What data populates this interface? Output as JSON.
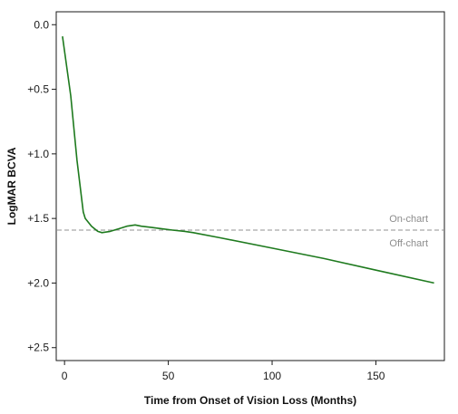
{
  "chart_data": {
    "type": "line",
    "title": "",
    "xlabel": "Time from Onset of Vision Loss (Months)",
    "ylabel": "LogMAR BCVA",
    "xlim": [
      -4,
      183
    ],
    "ylim": [
      -0.1,
      2.6
    ],
    "y_inverted": true,
    "grid": false,
    "legend": "none",
    "x_ticks": [
      0,
      50,
      100,
      150
    ],
    "x_tick_labels": [
      "0",
      "50",
      "100",
      "150"
    ],
    "y_ticks": [
      0.0,
      0.5,
      1.0,
      1.5,
      2.0,
      2.5
    ],
    "y_tick_labels": [
      "0.0",
      "+0.5",
      "+1.0",
      "+1.5",
      "+2.0",
      "+2.5"
    ],
    "series": [
      {
        "color": "#1e7a1e",
        "x": [
          -1,
          3,
          6,
          9,
          10,
          13,
          16,
          18,
          22,
          26,
          30,
          34,
          37,
          42,
          47,
          52,
          58,
          62,
          75,
          100,
          125,
          150,
          178
        ],
        "y": [
          0.09,
          0.55,
          1.05,
          1.45,
          1.5,
          1.56,
          1.6,
          1.61,
          1.6,
          1.58,
          1.56,
          1.55,
          1.56,
          1.57,
          1.58,
          1.59,
          1.6,
          1.61,
          1.65,
          1.73,
          1.81,
          1.9,
          2.0
        ]
      }
    ],
    "reference_line": {
      "y": 1.59,
      "style": "dashed",
      "color": "#a6a6a6"
    },
    "annotations": {
      "above": "On-chart",
      "below": "Off-chart"
    }
  }
}
